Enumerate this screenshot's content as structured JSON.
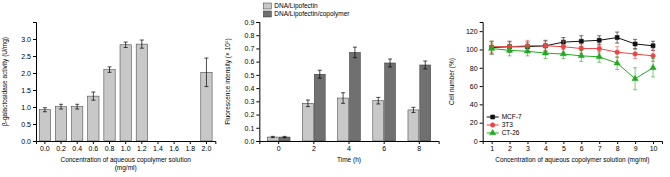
{
  "chart_data": [
    {
      "type": "bar",
      "categories": [
        "0.0",
        "0.2",
        "0.4",
        "0.6",
        "0.8",
        "1.0",
        "1.2",
        "1.4",
        "1.6",
        "1.8",
        "2.0"
      ],
      "values": [
        0.92,
        1.01,
        1.01,
        1.32,
        2.1,
        2.83,
        2.85,
        null,
        null,
        null,
        2.02
      ],
      "errors": [
        0.06,
        0.07,
        0.07,
        0.12,
        0.08,
        0.08,
        0.12,
        null,
        null,
        null,
        0.42
      ],
      "color": "#C8C8C8",
      "xlabel": "Concentration of aqueous copolymer solution\n(mg/ml)",
      "ylabel": "β-galactosidase activity (U/mg)",
      "ylim": [
        0,
        3.5
      ],
      "yticks": [
        {
          "value": 0,
          "label": "0.0"
        },
        0.5,
        {
          "value": 1,
          "label": "1.0"
        },
        1.5,
        {
          "value": 2,
          "label": "2.0"
        },
        2.5,
        {
          "value": 3,
          "label": "3.0"
        }
      ]
    },
    {
      "type": "bar",
      "categories": [
        "0",
        "2",
        "4",
        "6",
        "8"
      ],
      "series": [
        {
          "name": "DNA/Lipofectin",
          "color": "#C8C8C8",
          "values": [
            0.03,
            0.285,
            0.325,
            0.305,
            0.235
          ],
          "errors": [
            0.005,
            0.025,
            0.04,
            0.025,
            0.02
          ]
        },
        {
          "name": "DNA/Lipofectin/copolymer",
          "color": "#707070",
          "values": [
            0.03,
            0.505,
            0.67,
            0.59,
            0.575
          ],
          "errors": [
            0.005,
            0.03,
            0.04,
            0.03,
            0.03
          ]
        }
      ],
      "xlabel": "Time (h)",
      "ylabel": "Fluorescence intensity (× 10⁵)",
      "ylim": [
        0,
        0.9
      ],
      "yticks": [
        {
          "value": 0,
          "label": "0.0"
        },
        0.1,
        0.2,
        0.3,
        0.4,
        0.5,
        0.6,
        0.7,
        0.8,
        0.9
      ],
      "legend": "upper left"
    },
    {
      "type": "line",
      "x": [
        1,
        2,
        3,
        4,
        5,
        6,
        7,
        8,
        9,
        10
      ],
      "series": [
        {
          "name": "MCF-7",
          "color": "#111111",
          "marker": "square",
          "values": [
            102,
            103,
            103,
            104,
            108,
            109,
            110,
            113,
            106,
            104
          ],
          "errors": [
            7,
            6,
            5,
            6,
            5,
            6,
            5,
            6,
            5,
            5
          ]
        },
        {
          "name": "3T3",
          "color": "#EE4444",
          "marker": "circle",
          "values": [
            103,
            103,
            104,
            104,
            103,
            101,
            101,
            97,
            95,
            93
          ],
          "errors": [
            6,
            5,
            6,
            5,
            6,
            5,
            5,
            6,
            5,
            6
          ]
        },
        {
          "name": "CT-26",
          "color": "#22AA22",
          "marker": "triangle",
          "values": [
            101,
            99,
            98,
            96,
            95,
            93,
            92,
            85,
            68,
            80
          ],
          "errors": [
            6,
            6,
            5,
            6,
            5,
            6,
            6,
            7,
            12,
            10
          ]
        }
      ],
      "xlabel": "Concentration of aqueous copolymer solution (mg/ml)",
      "ylabel": "Cell number (%)",
      "xlim": [
        0.5,
        10.5
      ],
      "xticks": [
        1,
        2,
        3,
        4,
        5,
        6,
        7,
        8,
        9,
        10
      ],
      "ylim": [
        0,
        130
      ],
      "yticks": [
        0,
        20,
        40,
        60,
        80,
        100,
        120
      ],
      "legend": "lower left"
    }
  ]
}
